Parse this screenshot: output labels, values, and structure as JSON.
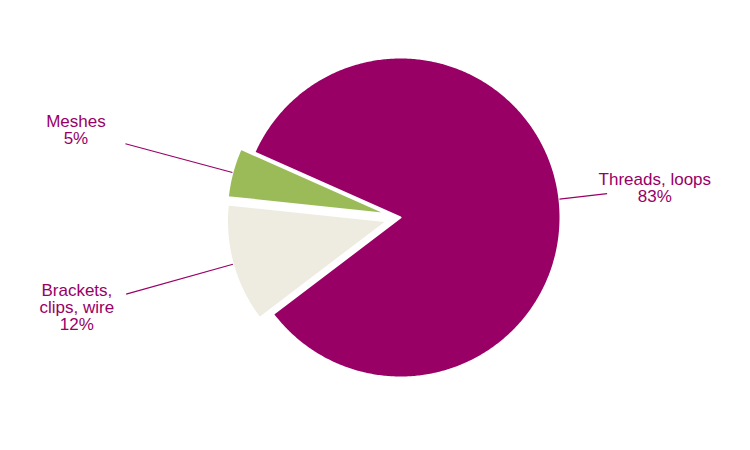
{
  "chart_data": {
    "type": "pie",
    "categories": [
      "Threads, loops",
      "Brackets, clips, wire",
      "Meshes"
    ],
    "values": [
      83,
      12,
      5
    ],
    "value_labels": [
      "83%",
      "12%",
      "5%"
    ],
    "colors": [
      "#990066",
      "#eeece1",
      "#9bbb59"
    ],
    "data_labels": true
  }
}
